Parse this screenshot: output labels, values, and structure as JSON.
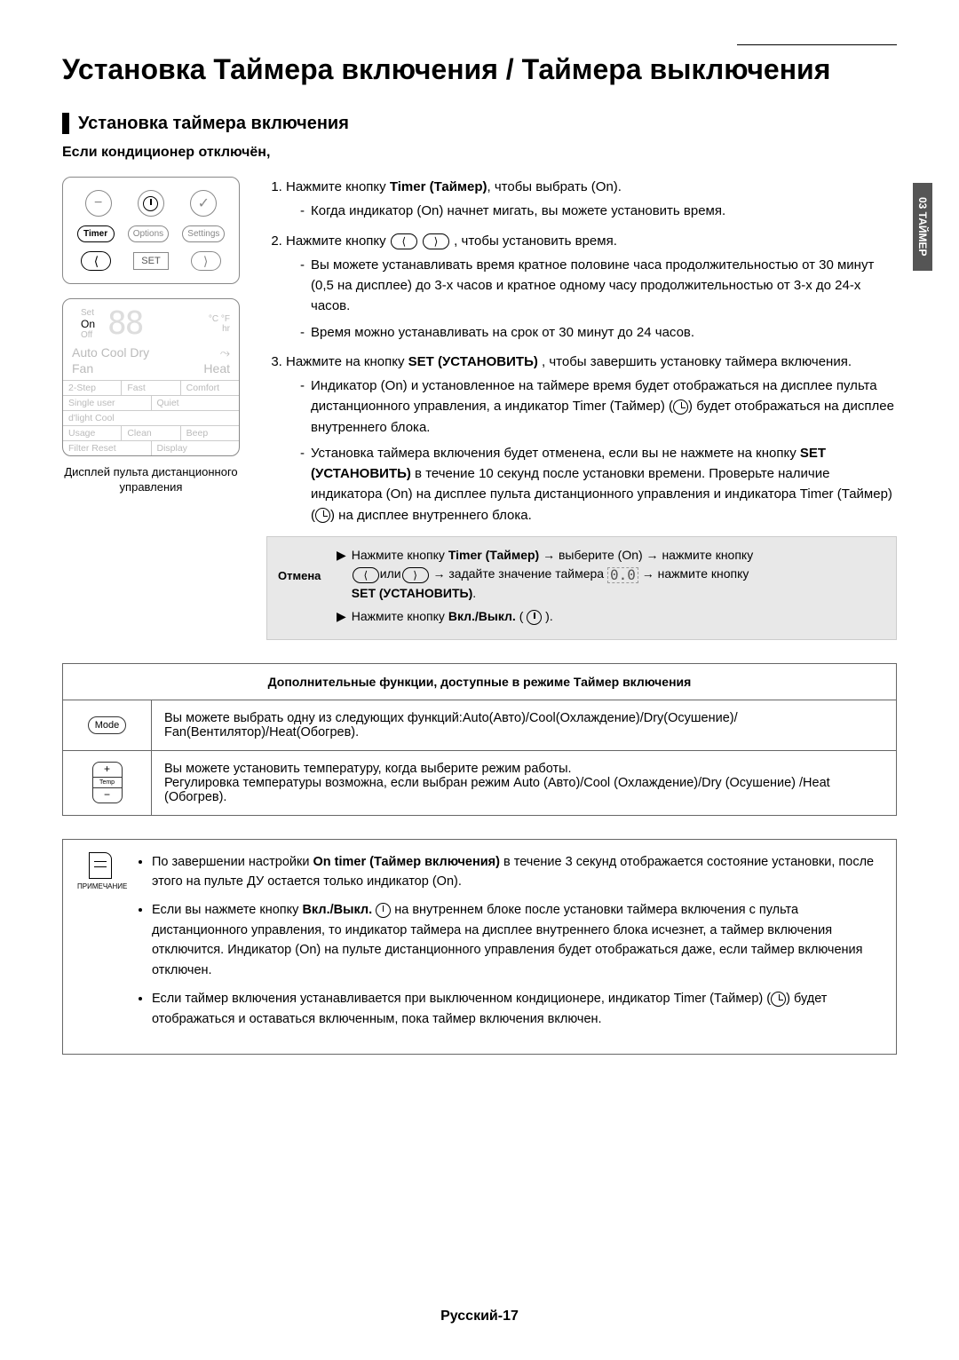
{
  "page": {
    "title": "Установка Таймера включения / Таймера выключения",
    "footer": "Русский-17",
    "side_tab": "03  ТАЙМЕР"
  },
  "section": {
    "title": "Установка таймера включения",
    "subheading": "Если кондиционер отключён,"
  },
  "remote": {
    "btn_timer": "Timer",
    "btn_options": "Options",
    "btn_settings": "Settings",
    "btn_set": "SET",
    "arrow_left": "⟨",
    "arrow_right": "⟩"
  },
  "display": {
    "set_label": "Set",
    "on_label": "On",
    "off_label": "Off",
    "cf": "°C °F",
    "hr": "hr",
    "digits": "88",
    "modes_r1a": "Auto Cool Dry",
    "modes_r1b": "⤳",
    "modes_r2a": "Fan",
    "modes_r2b": "Heat",
    "g1a": "2-Step",
    "g1b": "Fast",
    "g1c": "Comfort",
    "g2a": "Single user",
    "g2b": "Quiet",
    "g3a": "d'light Cool",
    "g4a": "Usage",
    "g4b": "Clean",
    "g4c": "Beep",
    "g5a": "Filter Reset",
    "g5b": "Display",
    "caption_l1": "Дисплей пульта дистанционного",
    "caption_l2": "управления"
  },
  "instructions": {
    "i1_pre": "Нажмите кнопку ",
    "i1_b": "Timer (Таймер)",
    "i1_post": ", чтобы выбрать (On).",
    "i1_s1": "Когда индикатор (On) начнет мигать, вы можете установить время.",
    "i2_pre": "Нажмите кнопку ",
    "i2_post": " , чтобы установить время.",
    "i2_s1": "Вы можете устанавливать время кратное половине часа продолжительностью от 30 минут (0,5 на дисплее) до 3-х часов и кратное одному часу продолжительностью от 3-х до 24-х часов.",
    "i2_s2": "Время можно устанавливать на срок от 30 минут до 24 часов.",
    "i3_pre": "Нажмите на кнопку ",
    "i3_b": "SET (УСТАНОВИТЬ)",
    "i3_post": " , чтобы завершить установку таймера включения.",
    "i3_s1_a": "Индикатор (On) и установленное на таймере время будет отображаться на дисплее пульта дистанционного управления, а  индикатор Timer (Таймер) (",
    "i3_s1_b": ") будет отображаться на дисплее внутреннего блока.",
    "i3_s2_a": "Установка таймера включения будет отменена, если вы не нажмете на кнопку ",
    "i3_s2_b1": "SET (УСТАНОВИТЬ)",
    "i3_s2_c": " в течение 10 секунд после установки времени. Проверьте наличие индикатора (On) на дисплее пульта дистанционного управления и индикатора Timer (Таймер) (",
    "i3_s2_d": ") на дисплее внутреннего блока."
  },
  "cancel": {
    "label": "Отмена",
    "l1_a": "Нажмите кнопку ",
    "l1_b": "Timer (Таймер)",
    "l1_c": " → выберите (On) → нажмите кнопку",
    "l2_a": "или",
    "l2_b": "→    задайте значение таймера ",
    "l2_c": " → нажмите кнопку ",
    "l2_d": "SET (УСТАНОВИТЬ)",
    "l2_e": ".",
    "l3_a": "Нажмите кнопку ",
    "l3_b": "Вкл./Выкл.",
    "l3_c": " ( ",
    "l3_d": " ).",
    "seg": "0.0"
  },
  "table": {
    "header": "Дополнительные функции, доступные в режиме Таймер включения",
    "mode_label": "Mode",
    "mode_text": "Вы можете выбрать одну из следующих функций:Auto(Авто)/Cool(Охлаждение)/Dry(Осушение)/ Fan(Вентилятор)/Heat(Обогрев).",
    "temp_label": "Temp",
    "temp_text": "Вы можете установить температуру, когда выберите режим работы.\nРегулировка температуры возможна, если выбран режим Auto (Авто)/Cool (Охлаждение)/Dry (Осушение) /Heat (Обогрев)."
  },
  "note": {
    "label": "ПРИМЕЧАНИЕ",
    "n1_a": "По завершении настройки ",
    "n1_b": "On timer (Таймер включения)",
    "n1_c": "  в течение 3 секунд отображается состояние установки, после этого на пульте ДУ остается только индикатор (On).",
    "n2_a": "Если вы нажмете кнопку ",
    "n2_b": "Вкл./Выкл.",
    "n2_c": " на внутреннем блоке после установки таймера включения с пульта дистанционного управления, то индикатор таймера на дисплее внутреннего блока исчезнет, а таймер включения отключится. Индикатор (On) на пульте дистанционного управления будет отображаться даже, если таймер включения отключен.",
    "n3_a": "Если таймер включения устанавливается при выключенном кондиционере, индикатор  Timer (Таймер) (",
    "n3_b": ") будет отображаться и оставаться включенным, пока таймер включения включен."
  }
}
